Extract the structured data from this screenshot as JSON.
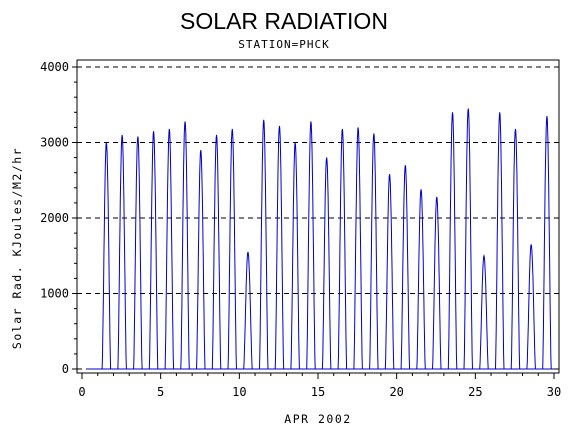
{
  "chart_data": {
    "type": "line",
    "title": "SOLAR RADIATION",
    "subtitle": "STATION=PHCK",
    "xlabel": "APR 2002",
    "ylabel": "Solar Rad. KJoules/M2/hr",
    "xlim": [
      0,
      30
    ],
    "ylim": [
      0,
      4000
    ],
    "x_ticks": [
      0,
      5,
      10,
      15,
      20,
      25,
      30
    ],
    "y_ticks": [
      0,
      1000,
      2000,
      3000,
      4000
    ],
    "grid": "horizontal-dashed",
    "series": [
      {
        "color": "#0000cc",
        "daily_peaks": [
          {
            "day": 1,
            "peak": 3000
          },
          {
            "day": 2,
            "peak": 3100
          },
          {
            "day": 3,
            "peak": 3080
          },
          {
            "day": 4,
            "peak": 3150
          },
          {
            "day": 5,
            "peak": 3180
          },
          {
            "day": 6,
            "peak": 3280
          },
          {
            "day": 7,
            "peak": 2900
          },
          {
            "day": 8,
            "peak": 3100
          },
          {
            "day": 9,
            "peak": 3180
          },
          {
            "day": 10,
            "peak": 1550
          },
          {
            "day": 11,
            "peak": 3300
          },
          {
            "day": 12,
            "peak": 3220
          },
          {
            "day": 13,
            "peak": 3000
          },
          {
            "day": 14,
            "peak": 3280
          },
          {
            "day": 15,
            "peak": 2800
          },
          {
            "day": 16,
            "peak": 3180
          },
          {
            "day": 17,
            "peak": 3200
          },
          {
            "day": 18,
            "peak": 3120
          },
          {
            "day": 19,
            "peak": 2580
          },
          {
            "day": 20,
            "peak": 2700
          },
          {
            "day": 21,
            "peak": 2380
          },
          {
            "day": 22,
            "peak": 2280
          },
          {
            "day": 23,
            "peak": 3400
          },
          {
            "day": 24,
            "peak": 3450
          },
          {
            "day": 25,
            "peak": 1500
          },
          {
            "day": 26,
            "peak": 3400
          },
          {
            "day": 27,
            "peak": 3180
          },
          {
            "day": 28,
            "peak": 1650
          },
          {
            "day": 29,
            "peak": 3350
          }
        ]
      }
    ]
  }
}
